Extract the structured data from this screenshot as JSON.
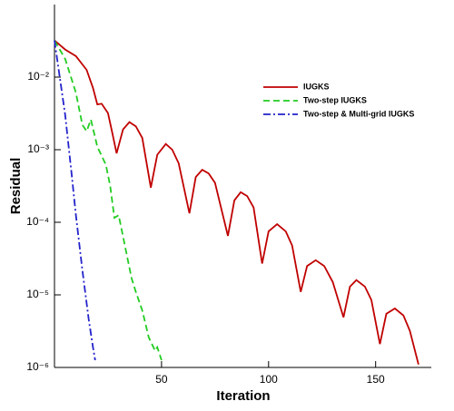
{
  "chart_data": {
    "type": "line",
    "log_y": true,
    "x_label": "Iteration",
    "y_label": "Residual",
    "xlim": [
      0,
      176
    ],
    "xticks": [
      50,
      100,
      150
    ],
    "ylim": [
      1e-06,
      0.1
    ],
    "yticks": [
      {
        "value": 1e-06,
        "label": "10⁻⁶"
      },
      {
        "value": 1e-05,
        "label": "10⁻⁵"
      },
      {
        "value": 0.0001,
        "label": "10⁻⁴"
      },
      {
        "value": 0.001,
        "label": "10⁻³"
      },
      {
        "value": 0.01,
        "label": "10⁻²"
      }
    ],
    "legend": "upper right",
    "series": [
      {
        "name": "IUGKS",
        "color": "#c00000",
        "dash": "solid",
        "x": [
          0,
          5,
          10,
          15,
          18,
          20,
          22,
          25,
          27,
          29,
          32,
          35,
          38,
          41,
          45,
          48,
          52,
          55,
          58,
          63,
          66,
          69,
          72,
          75,
          81,
          84,
          87,
          90,
          93,
          97,
          100,
          104,
          108,
          111,
          115,
          118,
          122,
          126,
          130,
          135,
          138,
          141,
          145,
          148,
          152,
          155,
          159,
          163,
          166,
          170
        ],
        "values": [
          0.032,
          0.024,
          0.0195,
          0.0126,
          0.0071,
          0.0042,
          0.0043,
          0.0032,
          0.0017,
          0.00089,
          0.0019,
          0.0024,
          0.0021,
          0.00145,
          0.0003,
          0.00085,
          0.0012,
          0.001,
          0.00065,
          0.000133,
          0.00042,
          0.00053,
          0.00047,
          0.00035,
          6.5e-05,
          0.0002,
          0.00026,
          0.00023,
          0.00016,
          2.7e-05,
          7.5e-05,
          9.4e-05,
          7.5e-05,
          4.8e-05,
          1.1e-05,
          2.5e-05,
          3e-05,
          2.5e-05,
          1.5e-05,
          4.9e-06,
          1.3e-05,
          1.6e-05,
          1.3e-05,
          8.5e-06,
          2.1e-06,
          5.5e-06,
          6.5e-06,
          5.2e-06,
          3.2e-06,
          1.1e-06
        ]
      },
      {
        "name": "Two-step IUGKS",
        "color": "#22cc22",
        "dash": "dashed",
        "x": [
          0,
          5,
          10,
          13,
          15,
          17,
          20,
          24,
          26,
          28,
          30,
          33,
          36,
          38,
          41,
          44,
          47,
          48,
          50
        ],
        "values": [
          0.032,
          0.0178,
          0.0061,
          0.0022,
          0.0018,
          0.0026,
          0.0011,
          0.00062,
          0.00032,
          0.000115,
          0.000125,
          4.6e-05,
          1.7e-05,
          1.1e-05,
          6.1e-06,
          2.6e-06,
          1.7e-06,
          1.9e-06,
          1.26e-06
        ]
      },
      {
        "name": "Two-step & Multi-grid IUGKS",
        "color": "#2222cc",
        "dash": "dashdot",
        "x": [
          0,
          5,
          8,
          10,
          13,
          16,
          18,
          19
        ],
        "values": [
          0.032,
          0.003,
          0.00046,
          0.000125,
          2.2e-05,
          4.6e-06,
          1.9e-06,
          1.26e-06
        ]
      }
    ]
  }
}
